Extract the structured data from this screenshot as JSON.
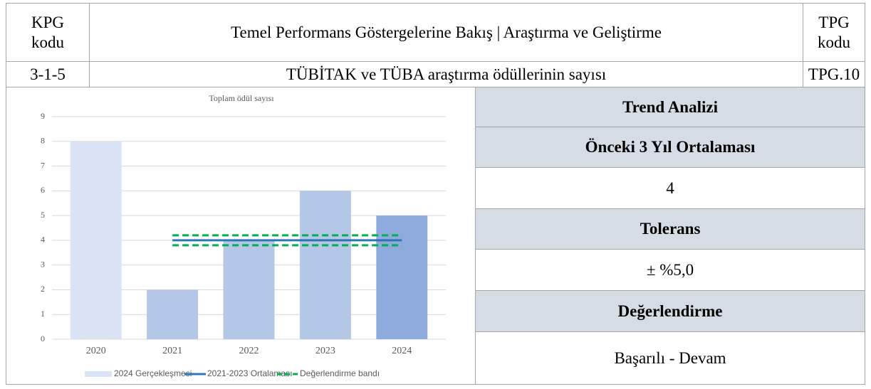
{
  "header": {
    "kpg_label": "KPG kodu",
    "title": "Temel Performans Göstergelerine Bakış | Araştırma ve Geliştirme",
    "tpg_label": "TPG kodu"
  },
  "row": {
    "kpg_code": "3-1-5",
    "name": "TÜBİTAK ve TÜBA araştırma ödüllerinin sayısı",
    "tpg_code": "TPG.10"
  },
  "chart_data": {
    "type": "bar",
    "title": "Toplam ödül sayısı",
    "categories": [
      "2020",
      "2021",
      "2022",
      "2023",
      "2024"
    ],
    "ylim": [
      0,
      9
    ],
    "yticks": [
      0,
      1,
      2,
      3,
      4,
      5,
      6,
      7,
      8,
      9
    ],
    "grid": true,
    "series": [
      {
        "name": "2024 Gerçekleşmesi",
        "color": "#dae3f3",
        "colors": [
          "#dae3f3",
          "#b4c7e7",
          "#b4c7e7",
          "#b4c7e7",
          "#8faadc"
        ],
        "values": [
          8,
          2,
          4,
          6,
          5
        ]
      },
      {
        "name": "2021-2023 Ortalaması",
        "type": "line",
        "color": "#2e75b6",
        "values": [
          null,
          4,
          4,
          4,
          4
        ]
      },
      {
        "name": "Değerlendirme bandı",
        "type": "line",
        "dashed": true,
        "color": "#00b050",
        "upper": [
          null,
          4.2,
          4.2,
          4.2,
          4.2
        ],
        "lower": [
          null,
          3.8,
          3.8,
          3.8,
          3.8
        ]
      }
    ]
  },
  "panel": {
    "title": "Trend Analizi",
    "items": [
      {
        "label": "Önceki 3 Yıl Ortalaması",
        "value": "4"
      },
      {
        "label": "Tolerans",
        "value": "± %5,0"
      },
      {
        "label": "Değerlendirme",
        "value": "Başarılı - Devam"
      }
    ]
  }
}
